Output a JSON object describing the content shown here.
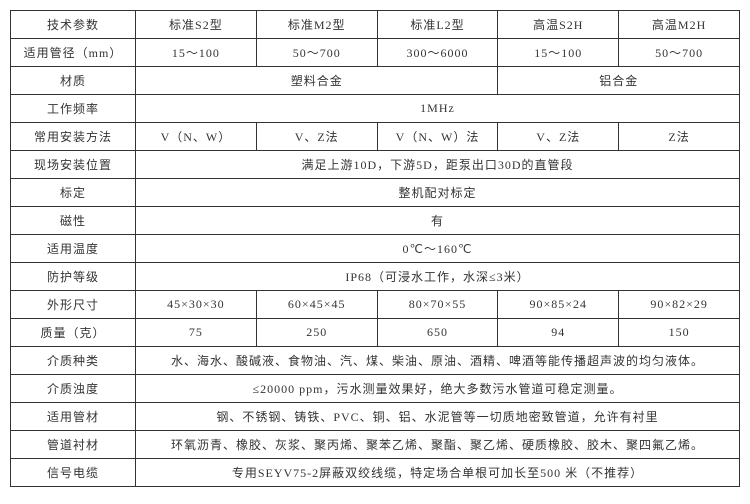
{
  "header": {
    "c0": "技术参数",
    "c1": "标准S2型",
    "c2": "标准M2型",
    "c3": "标准L2型",
    "c4": "高温S2H",
    "c5": "高温M2H"
  },
  "rows": {
    "pipe_dia": {
      "label": "适用管径（mm）",
      "c1": "15～100",
      "c2": "50～700",
      "c3": "300～6000",
      "c4": "15～100",
      "c5": "50～700"
    },
    "material": {
      "label": "材质",
      "v1": "塑料合金",
      "v2": "铝合金"
    },
    "freq": {
      "label": "工作频率",
      "v": "1MHz"
    },
    "install": {
      "label": "常用安装方法",
      "c1": "V（N、W）",
      "c2": "V、Z法",
      "c3": "V（N、W）法",
      "c4": "V、Z法",
      "c5": "Z法"
    },
    "site": {
      "label": "现场安装位置",
      "v": "满足上游10D，下游5D，距泵出口30D的直管段"
    },
    "calib": {
      "label": "标定",
      "v": "整机配对标定"
    },
    "mag": {
      "label": "磁性",
      "v": "有"
    },
    "temp": {
      "label": "适用温度",
      "v": "0℃～160℃"
    },
    "ip": {
      "label": "防护等级",
      "v": "IP68（可浸水工作，水深≤3米）"
    },
    "size": {
      "label": "外形尺寸",
      "c1": "45×30×30",
      "c2": "60×45×45",
      "c3": "80×70×55",
      "c4": "90×85×24",
      "c5": "90×82×29"
    },
    "mass": {
      "label": "质量（克）",
      "c1": "75",
      "c2": "250",
      "c3": "650",
      "c4": "94",
      "c5": "150"
    },
    "medium": {
      "label": "介质种类",
      "v": "水、海水、酸碱液、食物油、汽、煤、柴油、原油、酒精、啤酒等能传播超声波的均匀液体。"
    },
    "turb": {
      "label": "介质浊度",
      "v": "≤20000 ppm，污水测量效果好，绝大多数污水管道可稳定测量。"
    },
    "pipe_mat": {
      "label": "适用管材",
      "v": "钢、不锈钢、铸铁、PVC、铜、铝、水泥管等一切质地密致管道，允许有衬里"
    },
    "lining": {
      "label": "管道衬材",
      "v": "环氧沥青、橡胶、灰浆、聚丙烯、聚苯乙烯、聚酯、聚乙烯、硬质橡胶、胶木、聚四氟乙烯。"
    },
    "cable": {
      "label": "信号电缆",
      "v": "专用SEYV75-2屏蔽双绞线缆，特定场合单根可加长至500 米（不推荐）"
    }
  }
}
